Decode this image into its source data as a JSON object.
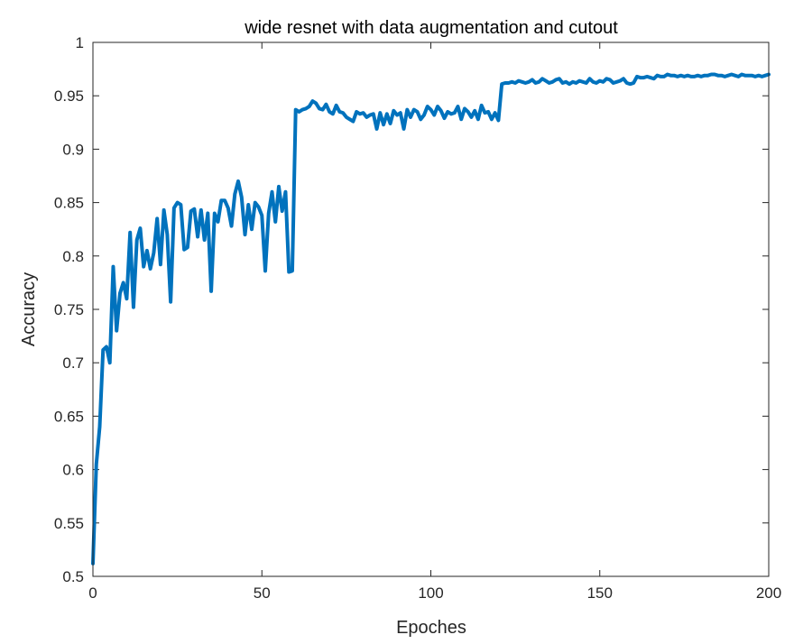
{
  "chart_data": {
    "type": "line",
    "title": "wide resnet with data augmentation and cutout",
    "xlabel": "Epoches",
    "ylabel": "Accuracy",
    "xlim": [
      0,
      200
    ],
    "ylim": [
      0.5,
      1
    ],
    "xticks": [
      0,
      50,
      100,
      150,
      200
    ],
    "xtick_labels": [
      "0",
      "50",
      "100",
      "150",
      "200"
    ],
    "yticks": [
      0.5,
      0.55,
      0.6,
      0.65,
      0.7,
      0.75,
      0.8,
      0.85,
      0.9,
      0.95,
      1
    ],
    "ytick_labels": [
      "0.5",
      "0.55",
      "0.6",
      "0.65",
      "0.7",
      "0.75",
      "0.8",
      "0.85",
      "0.9",
      "0.95",
      "1"
    ],
    "grid": false,
    "line_color": "#0072BD",
    "series": [
      {
        "x": [
          0,
          1,
          2,
          3,
          4,
          5,
          6,
          7,
          8,
          9,
          10,
          11,
          12,
          13,
          14,
          15,
          16,
          17,
          18,
          19,
          20,
          21,
          22,
          23,
          24,
          25,
          26,
          27,
          28,
          29,
          30,
          31,
          32,
          33,
          34,
          35,
          36,
          37,
          38,
          39,
          40,
          41,
          42,
          43,
          44,
          45,
          46,
          47,
          48,
          49,
          50,
          51,
          52,
          53,
          54,
          55,
          56,
          57,
          58,
          59,
          60,
          61,
          62,
          63,
          64,
          65,
          66,
          67,
          68,
          69,
          70,
          71,
          72,
          73,
          74,
          75,
          76,
          77,
          78,
          79,
          80,
          81,
          82,
          83,
          84,
          85,
          86,
          87,
          88,
          89,
          90,
          91,
          92,
          93,
          94,
          95,
          96,
          97,
          98,
          99,
          100,
          101,
          102,
          103,
          104,
          105,
          106,
          107,
          108,
          109,
          110,
          111,
          112,
          113,
          114,
          115,
          116,
          117,
          118,
          119,
          120,
          121,
          122,
          123,
          124,
          125,
          126,
          127,
          128,
          129,
          130,
          131,
          132,
          133,
          134,
          135,
          136,
          137,
          138,
          139,
          140,
          141,
          142,
          143,
          144,
          145,
          146,
          147,
          148,
          149,
          150,
          151,
          152,
          153,
          154,
          155,
          156,
          157,
          158,
          159,
          160,
          161,
          162,
          163,
          164,
          165,
          166,
          167,
          168,
          169,
          170,
          171,
          172,
          173,
          174,
          175,
          176,
          177,
          178,
          179,
          180,
          181,
          182,
          183,
          184,
          185,
          186,
          187,
          188,
          189,
          190,
          191,
          192,
          193,
          194,
          195,
          196,
          197,
          198,
          199,
          200
        ],
        "values": [
          0.512,
          0.605,
          0.64,
          0.712,
          0.715,
          0.7,
          0.79,
          0.73,
          0.765,
          0.775,
          0.76,
          0.822,
          0.752,
          0.815,
          0.826,
          0.79,
          0.805,
          0.788,
          0.803,
          0.835,
          0.792,
          0.843,
          0.82,
          0.757,
          0.845,
          0.85,
          0.848,
          0.806,
          0.808,
          0.842,
          0.844,
          0.818,
          0.843,
          0.815,
          0.84,
          0.767,
          0.84,
          0.832,
          0.852,
          0.852,
          0.845,
          0.828,
          0.858,
          0.87,
          0.855,
          0.82,
          0.848,
          0.825,
          0.85,
          0.846,
          0.838,
          0.786,
          0.84,
          0.86,
          0.832,
          0.865,
          0.842,
          0.86,
          0.785,
          0.786,
          0.937,
          0.935,
          0.937,
          0.938,
          0.94,
          0.945,
          0.943,
          0.938,
          0.937,
          0.942,
          0.935,
          0.933,
          0.941,
          0.935,
          0.934,
          0.93,
          0.928,
          0.926,
          0.935,
          0.933,
          0.934,
          0.93,
          0.932,
          0.933,
          0.919,
          0.934,
          0.923,
          0.933,
          0.924,
          0.936,
          0.932,
          0.934,
          0.919,
          0.937,
          0.93,
          0.937,
          0.935,
          0.928,
          0.932,
          0.94,
          0.937,
          0.932,
          0.94,
          0.936,
          0.929,
          0.935,
          0.933,
          0.934,
          0.94,
          0.928,
          0.938,
          0.935,
          0.93,
          0.936,
          0.928,
          0.941,
          0.934,
          0.935,
          0.928,
          0.934,
          0.927,
          0.961,
          0.962,
          0.962,
          0.963,
          0.962,
          0.964,
          0.963,
          0.962,
          0.963,
          0.965,
          0.962,
          0.963,
          0.966,
          0.964,
          0.962,
          0.963,
          0.965,
          0.966,
          0.962,
          0.963,
          0.961,
          0.963,
          0.962,
          0.964,
          0.963,
          0.962,
          0.966,
          0.963,
          0.962,
          0.964,
          0.963,
          0.966,
          0.965,
          0.962,
          0.963,
          0.964,
          0.966,
          0.962,
          0.961,
          0.962,
          0.968,
          0.967,
          0.967,
          0.968,
          0.967,
          0.966,
          0.969,
          0.968,
          0.968,
          0.97,
          0.969,
          0.969,
          0.968,
          0.969,
          0.968,
          0.969,
          0.968,
          0.968,
          0.969,
          0.968,
          0.969,
          0.969,
          0.97,
          0.97,
          0.969,
          0.969,
          0.968,
          0.969,
          0.97,
          0.969,
          0.968,
          0.97,
          0.969,
          0.969,
          0.969,
          0.968,
          0.969,
          0.968,
          0.969,
          0.97
        ]
      }
    ]
  }
}
